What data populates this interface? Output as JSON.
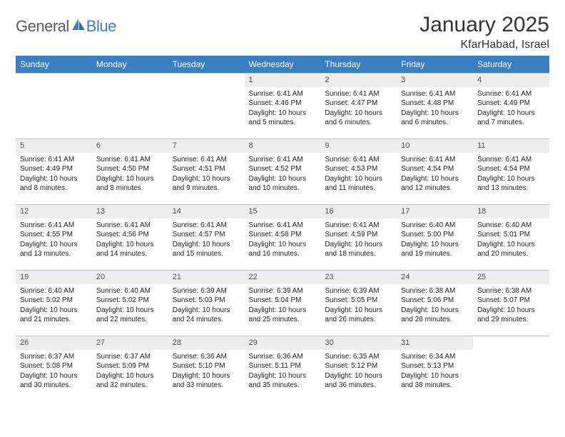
{
  "logo": {
    "general": "General",
    "blue": "Blue"
  },
  "title": "January 2025",
  "location": "KfarHabad, Israel",
  "header_bg": "#3a7fc4",
  "header_text": "#ffffff",
  "daynum_bg": "#eceef0",
  "border_color": "#b8c0c8",
  "weekdays": [
    "Sunday",
    "Monday",
    "Tuesday",
    "Wednesday",
    "Thursday",
    "Friday",
    "Saturday"
  ],
  "weeks": [
    [
      {
        "blank": true
      },
      {
        "blank": true
      },
      {
        "blank": true
      },
      {
        "n": "1",
        "sr": "6:41 AM",
        "ss": "4:46 PM",
        "dl": "10 hours and 5 minutes."
      },
      {
        "n": "2",
        "sr": "6:41 AM",
        "ss": "4:47 PM",
        "dl": "10 hours and 6 minutes."
      },
      {
        "n": "3",
        "sr": "6:41 AM",
        "ss": "4:48 PM",
        "dl": "10 hours and 6 minutes."
      },
      {
        "n": "4",
        "sr": "6:41 AM",
        "ss": "4:49 PM",
        "dl": "10 hours and 7 minutes."
      }
    ],
    [
      {
        "n": "5",
        "sr": "6:41 AM",
        "ss": "4:49 PM",
        "dl": "10 hours and 8 minutes."
      },
      {
        "n": "6",
        "sr": "6:41 AM",
        "ss": "4:50 PM",
        "dl": "10 hours and 8 minutes."
      },
      {
        "n": "7",
        "sr": "6:41 AM",
        "ss": "4:51 PM",
        "dl": "10 hours and 9 minutes."
      },
      {
        "n": "8",
        "sr": "6:41 AM",
        "ss": "4:52 PM",
        "dl": "10 hours and 10 minutes."
      },
      {
        "n": "9",
        "sr": "6:41 AM",
        "ss": "4:53 PM",
        "dl": "10 hours and 11 minutes."
      },
      {
        "n": "10",
        "sr": "6:41 AM",
        "ss": "4:54 PM",
        "dl": "10 hours and 12 minutes."
      },
      {
        "n": "11",
        "sr": "6:41 AM",
        "ss": "4:54 PM",
        "dl": "10 hours and 13 minutes."
      }
    ],
    [
      {
        "n": "12",
        "sr": "6:41 AM",
        "ss": "4:55 PM",
        "dl": "10 hours and 13 minutes."
      },
      {
        "n": "13",
        "sr": "6:41 AM",
        "ss": "4:56 PM",
        "dl": "10 hours and 14 minutes."
      },
      {
        "n": "14",
        "sr": "6:41 AM",
        "ss": "4:57 PM",
        "dl": "10 hours and 15 minutes."
      },
      {
        "n": "15",
        "sr": "6:41 AM",
        "ss": "4:58 PM",
        "dl": "10 hours and 16 minutes."
      },
      {
        "n": "16",
        "sr": "6:41 AM",
        "ss": "4:59 PM",
        "dl": "10 hours and 18 minutes."
      },
      {
        "n": "17",
        "sr": "6:40 AM",
        "ss": "5:00 PM",
        "dl": "10 hours and 19 minutes."
      },
      {
        "n": "18",
        "sr": "6:40 AM",
        "ss": "5:01 PM",
        "dl": "10 hours and 20 minutes."
      }
    ],
    [
      {
        "n": "19",
        "sr": "6:40 AM",
        "ss": "5:02 PM",
        "dl": "10 hours and 21 minutes."
      },
      {
        "n": "20",
        "sr": "6:40 AM",
        "ss": "5:02 PM",
        "dl": "10 hours and 22 minutes."
      },
      {
        "n": "21",
        "sr": "6:39 AM",
        "ss": "5:03 PM",
        "dl": "10 hours and 24 minutes."
      },
      {
        "n": "22",
        "sr": "6:39 AM",
        "ss": "5:04 PM",
        "dl": "10 hours and 25 minutes."
      },
      {
        "n": "23",
        "sr": "6:39 AM",
        "ss": "5:05 PM",
        "dl": "10 hours and 26 minutes."
      },
      {
        "n": "24",
        "sr": "6:38 AM",
        "ss": "5:06 PM",
        "dl": "10 hours and 28 minutes."
      },
      {
        "n": "25",
        "sr": "6:38 AM",
        "ss": "5:07 PM",
        "dl": "10 hours and 29 minutes."
      }
    ],
    [
      {
        "n": "26",
        "sr": "6:37 AM",
        "ss": "5:08 PM",
        "dl": "10 hours and 30 minutes."
      },
      {
        "n": "27",
        "sr": "6:37 AM",
        "ss": "5:09 PM",
        "dl": "10 hours and 32 minutes."
      },
      {
        "n": "28",
        "sr": "6:36 AM",
        "ss": "5:10 PM",
        "dl": "10 hours and 33 minutes."
      },
      {
        "n": "29",
        "sr": "6:36 AM",
        "ss": "5:11 PM",
        "dl": "10 hours and 35 minutes."
      },
      {
        "n": "30",
        "sr": "6:35 AM",
        "ss": "5:12 PM",
        "dl": "10 hours and 36 minutes."
      },
      {
        "n": "31",
        "sr": "6:34 AM",
        "ss": "5:13 PM",
        "dl": "10 hours and 38 minutes."
      },
      {
        "blank": true
      }
    ]
  ],
  "labels": {
    "sunrise": "Sunrise:",
    "sunset": "Sunset:",
    "daylight": "Daylight:"
  }
}
